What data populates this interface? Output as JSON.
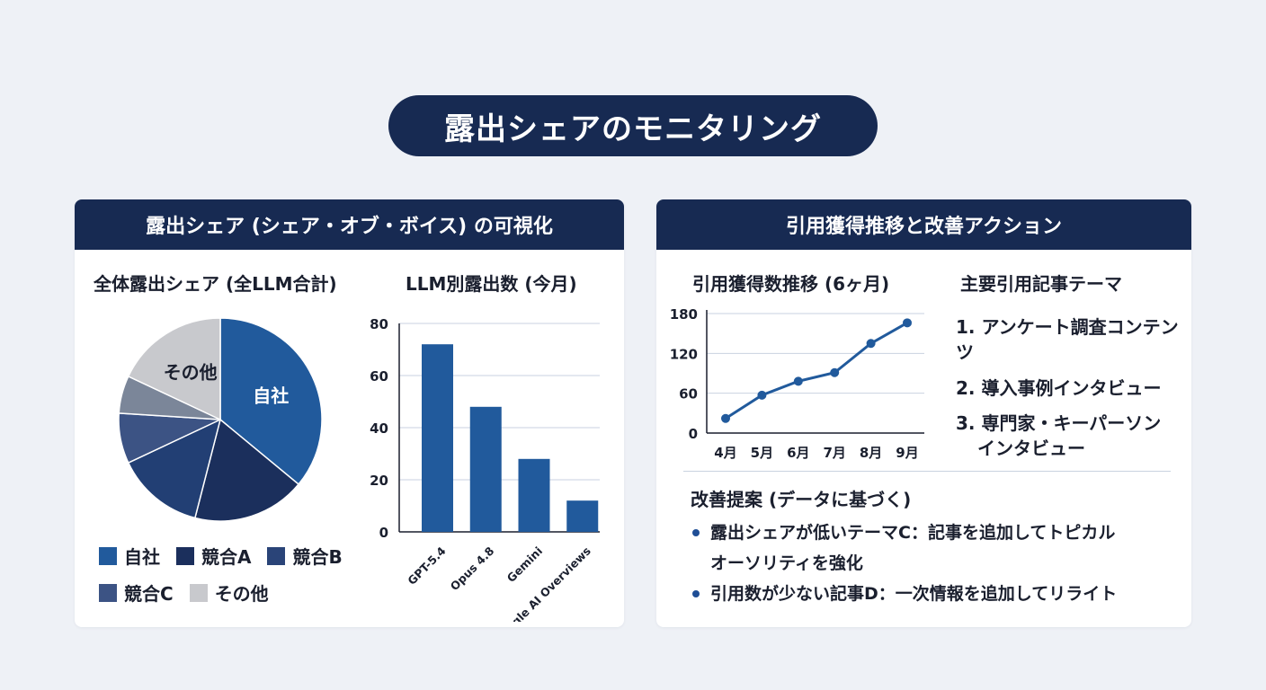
{
  "title": "露出シェアのモニタリング",
  "left_panel": {
    "header": "露出シェア (シェア・オブ・ボイス) の可視化",
    "pie_title": "全体露出シェア (全LLM合計)",
    "bar_title": "LLM別露出数 (今月)"
  },
  "right_panel": {
    "header": "引用獲得推移と改善アクション",
    "line_title": "引用獲得数推移 (6ヶ月)",
    "themes_title": "主要引用記事テーマ",
    "themes": [
      "1. アンケート調査コンテンツ",
      "2. 導入事例インタビュー",
      "3. 専門家・キーパーソン",
      "インタビュー"
    ],
    "proposal_title": "改善提案 (データに基づく)",
    "proposals": [
      {
        "line1": "露出シェアが低いテーマC：記事を追加してトピカル",
        "line2": "オーソリティを強化"
      },
      {
        "line1": "引用数が少ない記事D：一次情報を追加してリライト",
        "line2": ""
      }
    ]
  },
  "chart_data": [
    {
      "type": "pie",
      "title": "全体露出シェア (全LLM合計)",
      "slices": [
        {
          "name": "自社",
          "value": 36,
          "color": "#215a9c",
          "label_on_slice": "自社"
        },
        {
          "name": "競合A",
          "value": 18,
          "color": "#1b2f5c",
          "label_on_slice": ""
        },
        {
          "name": "競合B",
          "value": 14,
          "color": "#223f74",
          "label_on_slice": ""
        },
        {
          "name": "競合C",
          "value": 14,
          "color": "#3c5384",
          "label_on_slice": ""
        },
        {
          "name": "その他(灰)",
          "value": 0,
          "color": "#7b8699",
          "label_on_slice": ""
        },
        {
          "name": "その他",
          "value": 18,
          "color": "#c8c9cd",
          "label_on_slice": "その他"
        }
      ],
      "extra_slice": {
        "value": 0
      },
      "legend": [
        "自社",
        "競合A",
        "競合B",
        "競合C",
        "その他"
      ],
      "legend_colors": [
        "#215a9c",
        "#1b2f5c",
        "#2a4478",
        "#3c5384",
        "#c8c9cd"
      ]
    },
    {
      "type": "bar",
      "title": "LLM別露出数 (今月)",
      "categories": [
        "GPT-5.4",
        "Opus 4.8",
        "Gemini",
        "Google AI Overviews"
      ],
      "values": [
        72,
        48,
        28,
        12
      ],
      "ylim": [
        0,
        80
      ],
      "yticks": [
        0,
        20,
        40,
        60,
        80
      ],
      "grid": true,
      "color": "#215a9c"
    },
    {
      "type": "line",
      "title": "引用獲得数推移 (6ヶ月)",
      "categories": [
        "4月",
        "5月",
        "6月",
        "7月",
        "8月",
        "9月"
      ],
      "values": [
        22,
        57,
        78,
        91,
        135,
        166
      ],
      "ylim": [
        0,
        180
      ],
      "yticks": [
        0,
        60,
        120,
        180
      ],
      "grid": true,
      "color": "#215a9c"
    }
  ]
}
